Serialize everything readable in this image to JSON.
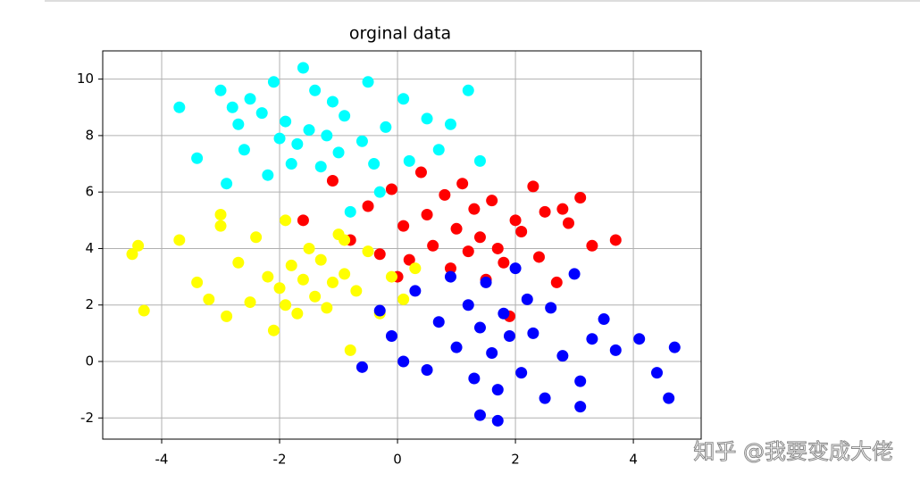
{
  "chart_data": {
    "type": "scatter",
    "title": "orginal data",
    "xlim": [
      -5,
      5.15
    ],
    "ylim": [
      -2.75,
      11
    ],
    "xticks": [
      -4,
      -2,
      0,
      2,
      4
    ],
    "yticks": [
      -2,
      0,
      2,
      4,
      6,
      8,
      10
    ],
    "grid": true,
    "annotations": [
      "知乎 @我要变成大佬"
    ],
    "series": [
      {
        "color": "#00ffff",
        "x": [
          -3.7,
          -3.4,
          -3.0,
          -2.9,
          -2.7,
          -2.6,
          -2.5,
          -2.3,
          -2.2,
          -2.1,
          -2.0,
          -1.9,
          -1.8,
          -1.6,
          -1.5,
          -1.4,
          -1.3,
          -1.2,
          -1.1,
          -1.0,
          -0.9,
          -0.8,
          -0.6,
          -0.5,
          -0.3,
          -0.2,
          0.1,
          0.2,
          0.5,
          0.7,
          0.9,
          1.2,
          1.4,
          -1.7,
          -2.8,
          -0.4
        ],
        "values": [
          9.0,
          7.2,
          9.6,
          6.3,
          8.4,
          7.5,
          9.3,
          8.8,
          6.6,
          9.9,
          7.9,
          8.5,
          7.0,
          10.4,
          8.2,
          9.6,
          6.9,
          8.0,
          9.2,
          7.4,
          8.7,
          5.3,
          7.8,
          9.9,
          6.0,
          8.3,
          9.3,
          7.1,
          8.6,
          7.5,
          8.4,
          9.6,
          7.1,
          7.7,
          9.0,
          7.0
        ]
      },
      {
        "color": "#ff0000",
        "x": [
          -1.1,
          -0.8,
          -0.5,
          -0.3,
          -0.1,
          0.1,
          0.2,
          0.4,
          0.5,
          0.6,
          0.8,
          0.9,
          1.0,
          1.1,
          1.2,
          1.3,
          1.4,
          1.5,
          1.6,
          1.7,
          1.8,
          2.0,
          2.1,
          2.3,
          2.4,
          2.5,
          2.7,
          2.9,
          3.1,
          3.3,
          3.7,
          -1.6,
          0.0,
          1.9,
          2.8
        ],
        "values": [
          6.4,
          4.3,
          5.5,
          3.8,
          6.1,
          4.8,
          3.6,
          6.7,
          5.2,
          4.1,
          5.9,
          3.3,
          4.7,
          6.3,
          3.9,
          5.4,
          4.4,
          2.9,
          5.7,
          4.0,
          3.5,
          5.0,
          4.6,
          6.2,
          3.7,
          5.3,
          2.8,
          4.9,
          5.8,
          4.1,
          4.3,
          5.0,
          3.0,
          1.6,
          5.4
        ]
      },
      {
        "color": "#ffff00",
        "x": [
          -4.5,
          -4.3,
          -3.7,
          -3.4,
          -3.2,
          -3.0,
          -2.9,
          -2.7,
          -2.5,
          -2.4,
          -2.2,
          -2.1,
          -2.0,
          -1.9,
          -1.8,
          -1.7,
          -1.6,
          -1.5,
          -1.4,
          -1.3,
          -1.2,
          -1.1,
          -1.0,
          -0.9,
          -0.8,
          -0.7,
          -0.5,
          -0.3,
          -0.1,
          0.1,
          0.3,
          -4.4,
          -3.0,
          -0.9,
          -1.9
        ],
        "values": [
          3.8,
          1.8,
          4.3,
          2.8,
          2.2,
          5.2,
          1.6,
          3.5,
          2.1,
          4.4,
          3.0,
          1.1,
          2.6,
          5.0,
          3.4,
          1.7,
          2.9,
          4.0,
          2.3,
          3.6,
          1.9,
          2.8,
          4.5,
          3.1,
          0.4,
          2.5,
          3.9,
          1.7,
          3.0,
          2.2,
          3.3,
          4.1,
          4.8,
          4.3,
          2.0
        ]
      },
      {
        "color": "#0000ff",
        "x": [
          -0.6,
          -0.3,
          -0.1,
          0.1,
          0.3,
          0.5,
          0.7,
          0.9,
          1.0,
          1.2,
          1.3,
          1.4,
          1.5,
          1.6,
          1.7,
          1.8,
          1.9,
          2.0,
          2.1,
          2.2,
          2.3,
          2.5,
          2.6,
          2.8,
          3.0,
          3.1,
          3.3,
          3.5,
          3.7,
          4.1,
          4.4,
          4.6,
          4.7,
          1.7,
          1.4,
          3.1
        ],
        "values": [
          -0.2,
          1.8,
          0.9,
          0.0,
          2.5,
          -0.3,
          1.4,
          3.0,
          0.5,
          2.0,
          -0.6,
          1.2,
          2.8,
          0.3,
          -1.0,
          1.7,
          0.9,
          3.3,
          -0.4,
          2.2,
          1.0,
          -1.3,
          1.9,
          0.2,
          3.1,
          -1.6,
          0.8,
          1.5,
          0.4,
          0.8,
          -0.4,
          -1.3,
          0.5,
          -2.1,
          -1.9,
          -0.7
        ]
      }
    ]
  }
}
